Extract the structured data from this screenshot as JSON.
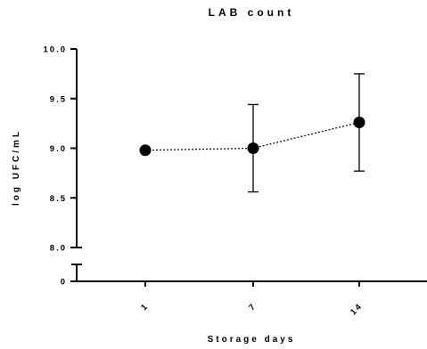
{
  "chart_data": {
    "type": "line",
    "title": "LAB count",
    "xlabel": "Storage days",
    "ylabel": "log UFC/mL",
    "categories": [
      "1",
      "7",
      "14"
    ],
    "series": [
      {
        "values": [
          8.98,
          9.0,
          9.26
        ],
        "error": [
          0.0,
          0.44,
          0.49
        ]
      }
    ],
    "y_ticks_upper": [
      "8.0",
      "8.5",
      "9.0",
      "9.5",
      "10.0"
    ],
    "y_ticks_lower": [
      "0"
    ],
    "ylim_upper": [
      8.0,
      10.0
    ],
    "ylim_lower": [
      0,
      0
    ],
    "y_axis_break": true,
    "line_style": "dotted",
    "marker": "filled-circle",
    "error_bars": true,
    "grid": false
  }
}
